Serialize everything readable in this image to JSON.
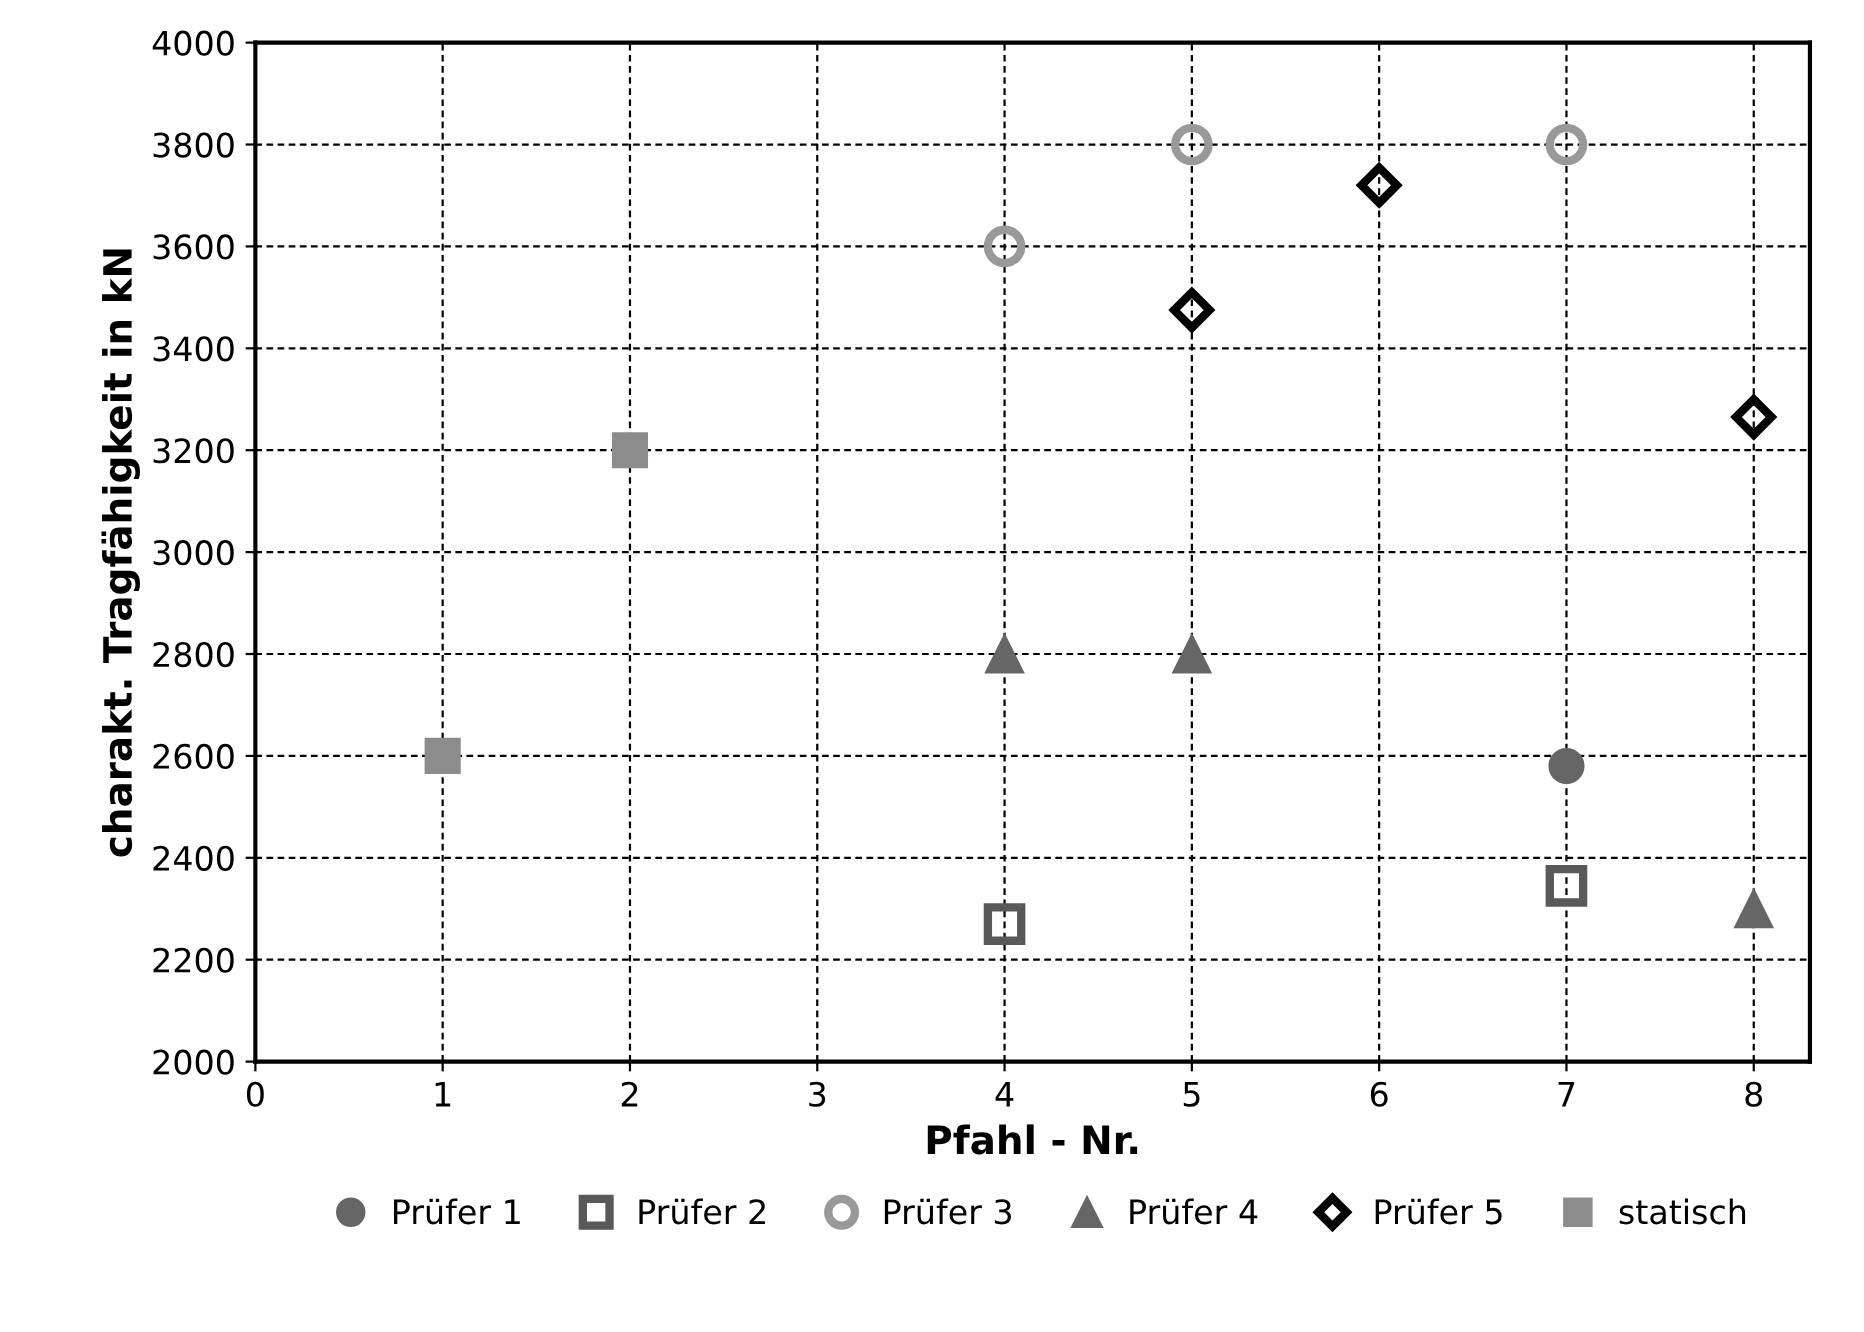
{
  "chart_data": {
    "type": "scatter",
    "xlabel": "Pfahl - Nr.",
    "ylabel": "charakt. Tragfähigkeit in kN",
    "xlim": [
      0,
      8.3
    ],
    "xticks": [
      0,
      1,
      2,
      3,
      4,
      5,
      6,
      7,
      8
    ],
    "ylim": [
      2000,
      4000
    ],
    "yticks": [
      2000,
      2200,
      2400,
      2600,
      2800,
      3000,
      3200,
      3400,
      3600,
      3800,
      4000
    ],
    "grid": true,
    "legend": "bottom",
    "series": [
      {
        "name": "Prüfer 1",
        "color": "#666666",
        "marker": "circle",
        "x": [
          7
        ],
        "values": [
          2580
        ]
      },
      {
        "name": "Prüfer 2",
        "color": "#595959",
        "marker": "square",
        "x": [
          4,
          7
        ],
        "values": [
          2270,
          2345
        ]
      },
      {
        "name": "Prüfer 3",
        "color": "#999999",
        "marker": "circle",
        "x": [
          4,
          5,
          7
        ],
        "values": [
          3600,
          3800,
          3800
        ]
      },
      {
        "name": "Prüfer 4",
        "color": "#666666",
        "marker": "triangle",
        "x": [
          4,
          5,
          8
        ],
        "values": [
          2800,
          2800,
          2300
        ]
      },
      {
        "name": "Prüfer 5",
        "color": "#000000",
        "marker": "diamond",
        "x": [
          5,
          6,
          8
        ],
        "values": [
          3475,
          3720,
          3265
        ]
      },
      {
        "name": "statisch",
        "color": "#8c8c8c",
        "marker": "square",
        "x": [
          1,
          2
        ],
        "values": [
          2600,
          3200
        ]
      }
    ]
  }
}
